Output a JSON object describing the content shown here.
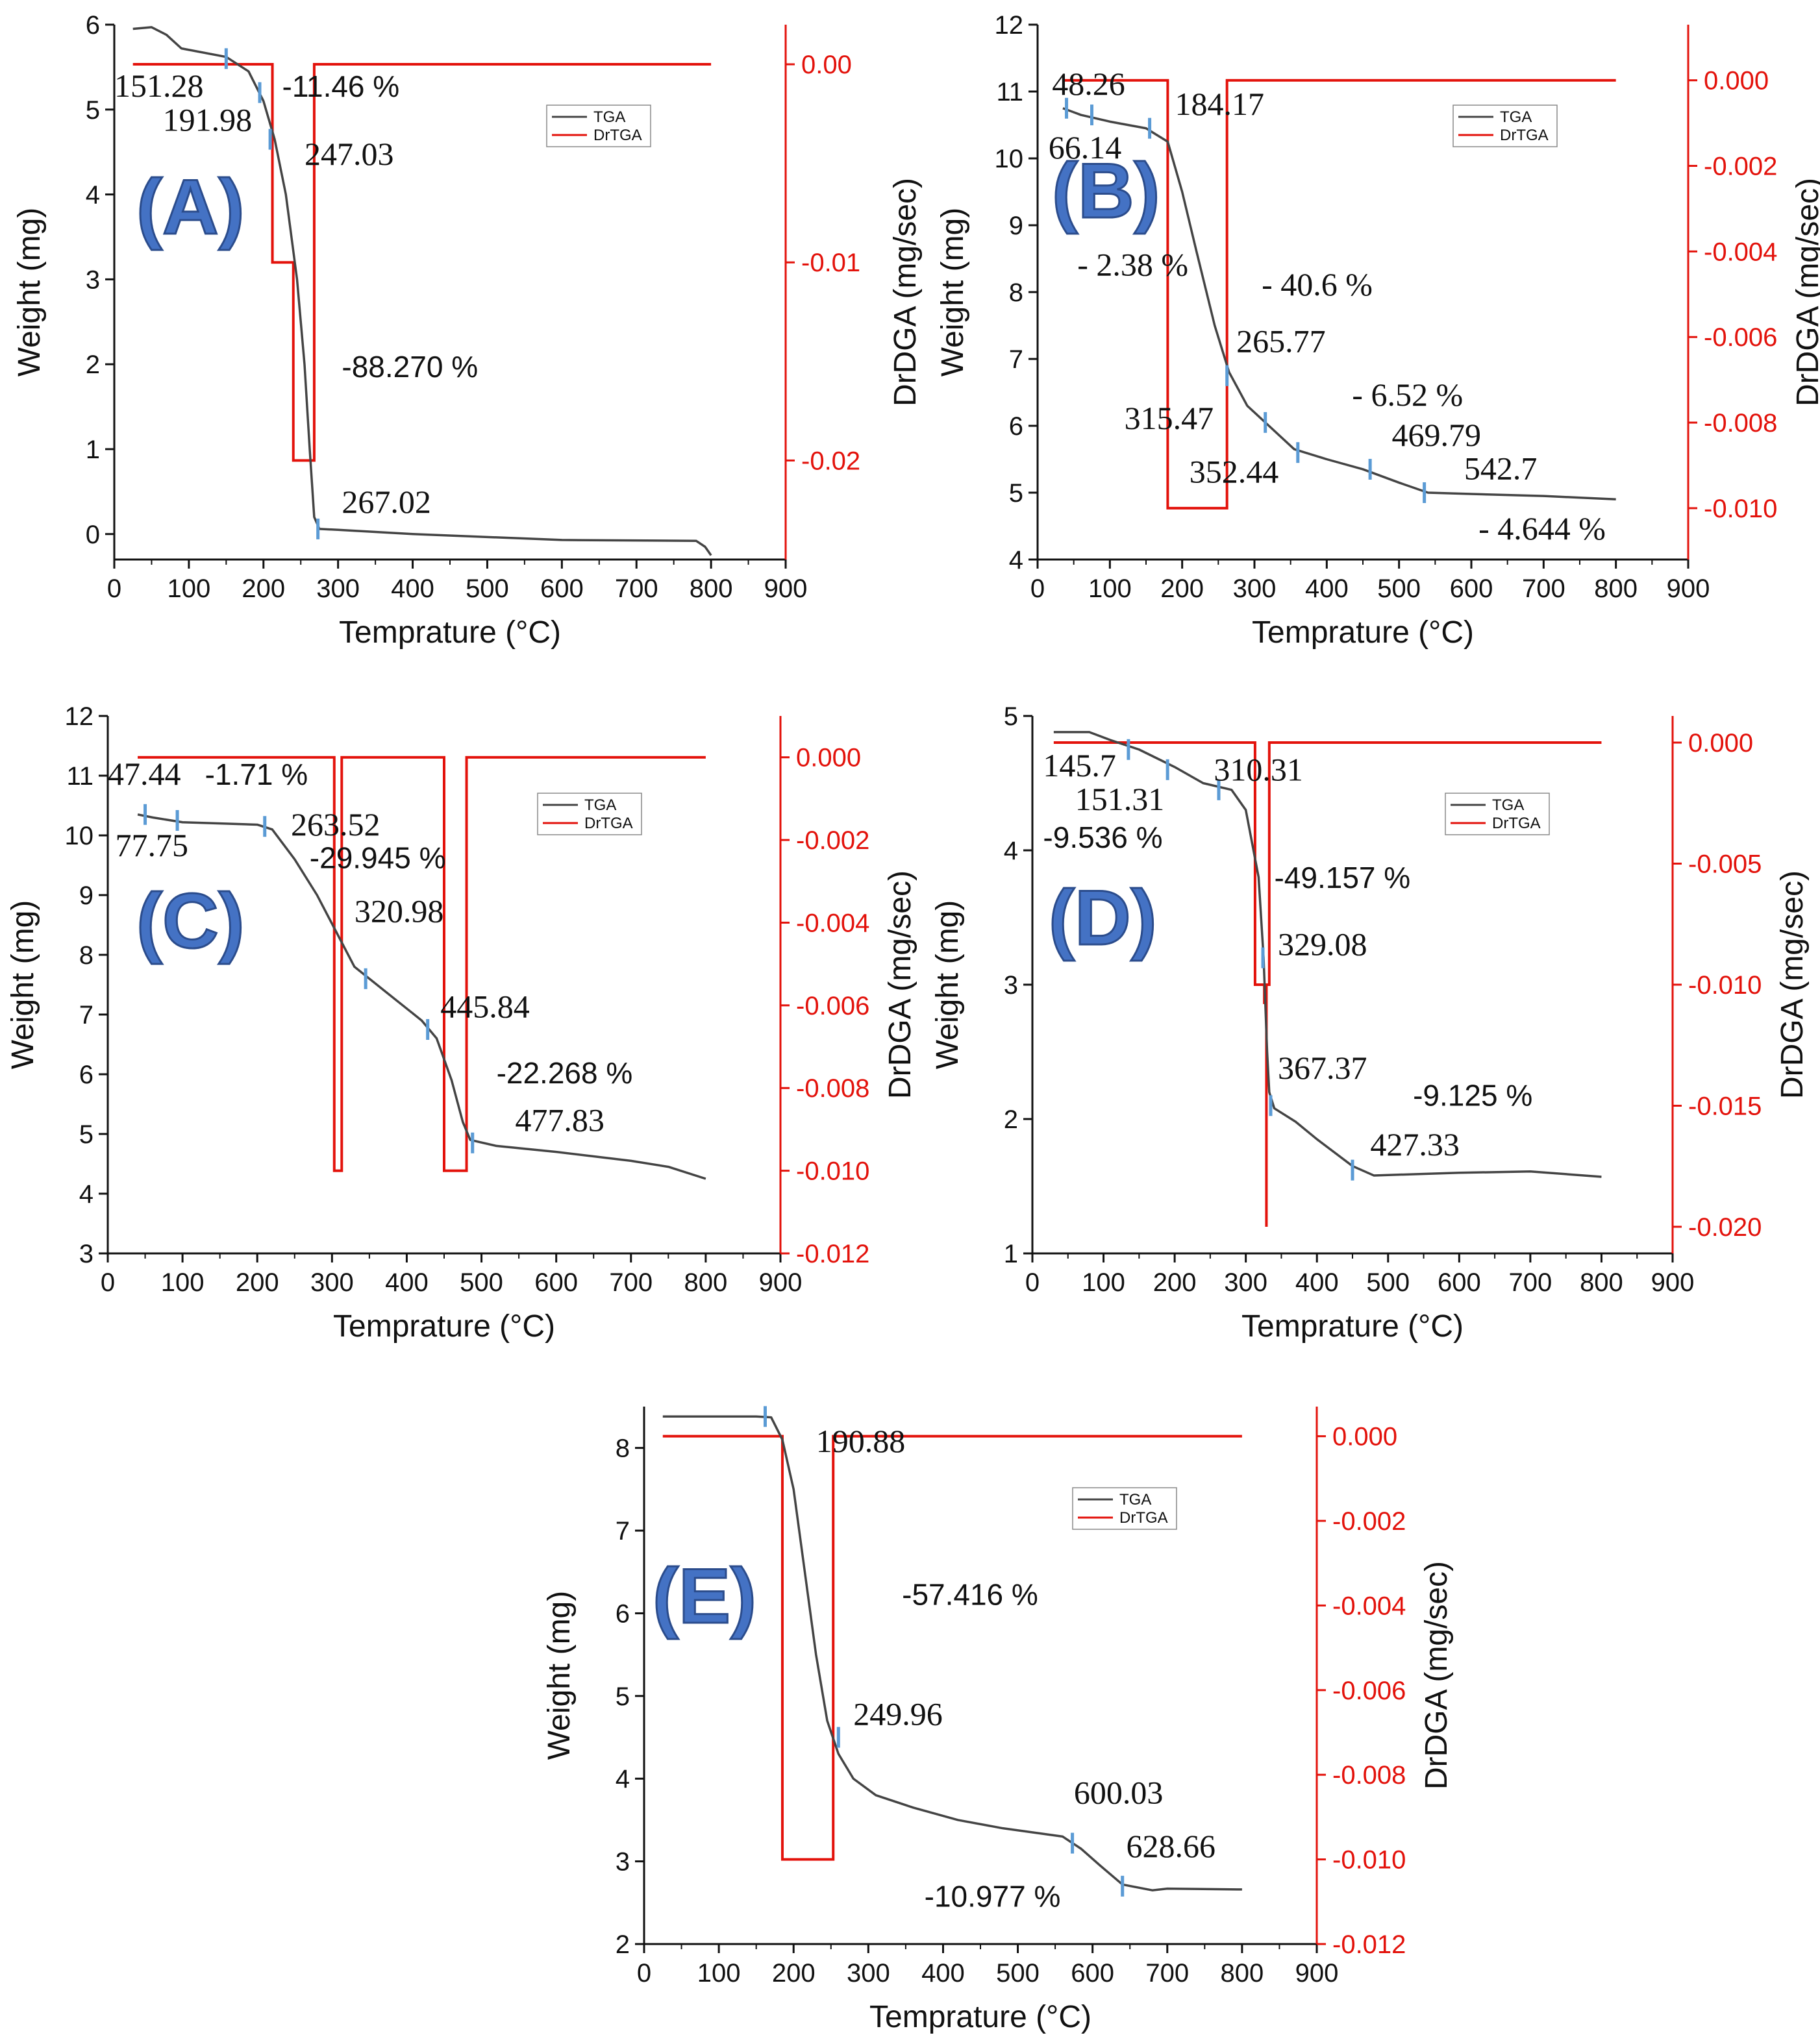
{
  "figure": {
    "colors": {
      "tga": "#444444",
      "drtga": "#e3120b",
      "marker": "#5b9bd5",
      "panel_letter": "#4472c4"
    },
    "legend": {
      "tga": "TGA",
      "drtga": "DrTGA"
    }
  },
  "chart_data": [
    {
      "id": "A",
      "type": "line",
      "panel_label": "(A)",
      "xlabel": "Temprature (°C)",
      "ylabel": "Weight (mg)",
      "y2label": "DrDGA (mg/sec)",
      "xlim": [
        0,
        900
      ],
      "ylim": [
        -0.3,
        6
      ],
      "y2lim": [
        -0.025,
        0.002
      ],
      "xticks": [
        "0",
        "100",
        "200",
        "300",
        "400",
        "500",
        "600",
        "700",
        "800",
        "900"
      ],
      "yticks": [
        "0",
        "1",
        "2",
        "3",
        "4",
        "5",
        "6"
      ],
      "y2ticks": [
        "0.00",
        "-0.01",
        "-0.02"
      ],
      "tga": [
        [
          25,
          5.95
        ],
        [
          50,
          5.97
        ],
        [
          70,
          5.88
        ],
        [
          90,
          5.72
        ],
        [
          150,
          5.62
        ],
        [
          180,
          5.45
        ],
        [
          200,
          5.1
        ],
        [
          215,
          4.65
        ],
        [
          230,
          4.0
        ],
        [
          245,
          3.0
        ],
        [
          255,
          2.0
        ],
        [
          262,
          1.0
        ],
        [
          268,
          0.2
        ],
        [
          275,
          0.06
        ],
        [
          300,
          0.05
        ],
        [
          400,
          0.0
        ],
        [
          600,
          -0.07
        ],
        [
          780,
          -0.08
        ],
        [
          792,
          -0.15
        ],
        [
          800,
          -0.25
        ]
      ],
      "drtga": [
        [
          25,
          0
        ],
        [
          212,
          0
        ],
        [
          212,
          -0.01
        ],
        [
          240,
          -0.01
        ],
        [
          240,
          -0.02
        ],
        [
          268,
          -0.02
        ],
        [
          268,
          0
        ],
        [
          800,
          0
        ]
      ],
      "markers": [
        [
          150,
          5.6
        ],
        [
          195,
          5.2
        ],
        [
          209,
          4.65
        ],
        [
          273,
          0.06
        ]
      ],
      "annotations": [
        {
          "text": "151.28",
          "x": 0,
          "y": 5.15,
          "style": "serif"
        },
        {
          "text": "-11.46 %",
          "x": 225,
          "y": 5.15,
          "style": "sans"
        },
        {
          "text": "191.98",
          "x": 65,
          "y": 4.75,
          "style": "serif"
        },
        {
          "text": "247.03",
          "x": 255,
          "y": 4.35,
          "style": "serif"
        },
        {
          "text": "-88.270 %",
          "x": 305,
          "y": 1.85,
          "style": "sans"
        },
        {
          "text": "267.02",
          "x": 305,
          "y": 0.25,
          "style": "serif"
        }
      ]
    },
    {
      "id": "B",
      "type": "line",
      "panel_label": "(B)",
      "xlabel": "Temprature (°C)",
      "ylabel": "Weight (mg)",
      "y2label": "DrDGA (mg/sec)",
      "xlim": [
        0,
        900
      ],
      "ylim": [
        4,
        12
      ],
      "y2lim": [
        -0.0112,
        0.0013
      ],
      "xticks": [
        "0",
        "100",
        "200",
        "300",
        "400",
        "500",
        "600",
        "700",
        "800",
        "900"
      ],
      "yticks": [
        "4",
        "5",
        "6",
        "7",
        "8",
        "9",
        "10",
        "11",
        "12"
      ],
      "y2ticks": [
        "0.000",
        "-0.002",
        "-0.004",
        "-0.006",
        "-0.008",
        "-0.010"
      ],
      "tga": [
        [
          35,
          10.75
        ],
        [
          60,
          10.65
        ],
        [
          100,
          10.55
        ],
        [
          150,
          10.45
        ],
        [
          180,
          10.25
        ],
        [
          200,
          9.5
        ],
        [
          220,
          8.6
        ],
        [
          245,
          7.5
        ],
        [
          265,
          6.8
        ],
        [
          290,
          6.3
        ],
        [
          320,
          6.0
        ],
        [
          355,
          5.65
        ],
        [
          400,
          5.5
        ],
        [
          450,
          5.35
        ],
        [
          500,
          5.15
        ],
        [
          540,
          5.0
        ],
        [
          600,
          4.98
        ],
        [
          700,
          4.95
        ],
        [
          800,
          4.9
        ]
      ],
      "drtga": [
        [
          35,
          0
        ],
        [
          180,
          0
        ],
        [
          180,
          -0.01
        ],
        [
          262,
          -0.01
        ],
        [
          262,
          0
        ],
        [
          800,
          0
        ]
      ],
      "markers": [
        [
          40,
          10.75
        ],
        [
          75,
          10.65
        ],
        [
          155,
          10.45
        ],
        [
          262,
          6.75
        ],
        [
          315,
          6.05
        ],
        [
          360,
          5.6
        ],
        [
          460,
          5.35
        ],
        [
          535,
          5.0
        ]
      ],
      "annotations": [
        {
          "text": "48.26",
          "x": 20,
          "y": 10.95,
          "style": "serif"
        },
        {
          "text": "184.17",
          "x": 190,
          "y": 10.65,
          "style": "serif"
        },
        {
          "text": "66.14",
          "x": 15,
          "y": 10.0,
          "style": "serif"
        },
        {
          "text": "- 2.38 %",
          "x": 55,
          "y": 8.25,
          "style": "serif"
        },
        {
          "text": "- 40.6 %",
          "x": 310,
          "y": 7.95,
          "style": "serif"
        },
        {
          "text": "265.77",
          "x": 275,
          "y": 7.1,
          "style": "serif"
        },
        {
          "text": "- 6.52 %",
          "x": 435,
          "y": 6.3,
          "style": "serif"
        },
        {
          "text": "315.47",
          "x": 120,
          "y": 5.95,
          "style": "serif"
        },
        {
          "text": "469.79",
          "x": 490,
          "y": 5.7,
          "style": "serif"
        },
        {
          "text": "352.44",
          "x": 210,
          "y": 5.15,
          "style": "serif"
        },
        {
          "text": "542.7",
          "x": 590,
          "y": 5.2,
          "style": "serif"
        },
        {
          "text": "- 4.644 %",
          "x": 610,
          "y": 4.3,
          "style": "serif"
        }
      ]
    },
    {
      "id": "C",
      "type": "line",
      "panel_label": "(C)",
      "xlabel": "Temprature (°C)",
      "ylabel": "Weight (mg)",
      "y2label": "DrDGA (mg/sec)",
      "xlim": [
        0,
        900
      ],
      "ylim": [
        3,
        12
      ],
      "y2lim": [
        -0.012,
        0.001
      ],
      "xticks": [
        "0",
        "100",
        "200",
        "300",
        "400",
        "500",
        "600",
        "700",
        "800",
        "900"
      ],
      "yticks": [
        "3",
        "4",
        "5",
        "6",
        "7",
        "8",
        "9",
        "10",
        "11",
        "12"
      ],
      "y2ticks": [
        "0.000",
        "-0.002",
        "-0.004",
        "-0.006",
        "-0.008",
        "-0.010",
        "-0.012"
      ],
      "tga": [
        [
          40,
          10.35
        ],
        [
          60,
          10.3
        ],
        [
          100,
          10.22
        ],
        [
          200,
          10.18
        ],
        [
          220,
          10.1
        ],
        [
          250,
          9.6
        ],
        [
          280,
          9.0
        ],
        [
          305,
          8.4
        ],
        [
          330,
          7.8
        ],
        [
          370,
          7.4
        ],
        [
          420,
          6.9
        ],
        [
          440,
          6.6
        ],
        [
          460,
          5.9
        ],
        [
          475,
          5.2
        ],
        [
          485,
          4.9
        ],
        [
          520,
          4.8
        ],
        [
          600,
          4.7
        ],
        [
          700,
          4.55
        ],
        [
          750,
          4.45
        ],
        [
          800,
          4.25
        ]
      ],
      "drtga": [
        [
          40,
          0
        ],
        [
          303,
          0
        ],
        [
          303,
          -0.01
        ],
        [
          313,
          -0.01
        ],
        [
          313,
          0
        ],
        [
          450,
          0
        ],
        [
          450,
          -0.01
        ],
        [
          480,
          -0.01
        ],
        [
          480,
          0
        ],
        [
          800,
          0
        ]
      ],
      "markers": [
        [
          50,
          10.35
        ],
        [
          93,
          10.25
        ],
        [
          210,
          10.15
        ],
        [
          345,
          7.6
        ],
        [
          428,
          6.75
        ],
        [
          488,
          4.85
        ]
      ],
      "annotations": [
        {
          "text": "47.44",
          "x": 0,
          "y": 10.85,
          "style": "serif"
        },
        {
          "text": "-1.71 %",
          "x": 130,
          "y": 10.85,
          "style": "sans"
        },
        {
          "text": "263.52",
          "x": 245,
          "y": 10.0,
          "style": "serif"
        },
        {
          "text": "77.75",
          "x": 10,
          "y": 9.65,
          "style": "serif"
        },
        {
          "text": "-29.945 %",
          "x": 270,
          "y": 9.45,
          "style": "sans"
        },
        {
          "text": "320.98",
          "x": 330,
          "y": 8.55,
          "style": "serif"
        },
        {
          "text": "445.84",
          "x": 445,
          "y": 6.95,
          "style": "serif"
        },
        {
          "text": "-22.268 %",
          "x": 520,
          "y": 5.85,
          "style": "sans"
        },
        {
          "text": "477.83",
          "x": 545,
          "y": 5.05,
          "style": "serif"
        }
      ]
    },
    {
      "id": "D",
      "type": "line",
      "panel_label": "(D)",
      "xlabel": "Temprature (°C)",
      "ylabel": "Weight (mg)",
      "y2label": "DrDGA (mg/sec)",
      "xlim": [
        0,
        900
      ],
      "ylim": [
        1,
        5
      ],
      "y2lim": [
        -0.0211,
        0.0011
      ],
      "xticks": [
        "0",
        "100",
        "200",
        "300",
        "400",
        "500",
        "600",
        "700",
        "800",
        "900"
      ],
      "yticks": [
        "1",
        "2",
        "3",
        "4",
        "5"
      ],
      "y2ticks": [
        "0.000",
        "-0.005",
        "-0.010",
        "-0.015",
        "-0.020"
      ],
      "tga": [
        [
          30,
          4.88
        ],
        [
          80,
          4.88
        ],
        [
          110,
          4.82
        ],
        [
          150,
          4.75
        ],
        [
          200,
          4.62
        ],
        [
          240,
          4.5
        ],
        [
          280,
          4.45
        ],
        [
          300,
          4.3
        ],
        [
          318,
          3.8
        ],
        [
          325,
          3.2
        ],
        [
          330,
          2.5
        ],
        [
          333,
          2.2
        ],
        [
          340,
          2.08
        ],
        [
          370,
          1.98
        ],
        [
          400,
          1.85
        ],
        [
          450,
          1.65
        ],
        [
          480,
          1.58
        ],
        [
          600,
          1.6
        ],
        [
          700,
          1.61
        ],
        [
          800,
          1.57
        ]
      ],
      "drtga": [
        [
          30,
          0
        ],
        [
          313,
          0
        ],
        [
          313,
          -0.01
        ],
        [
          333,
          -0.01
        ],
        [
          333,
          0
        ],
        [
          800,
          0
        ]
      ],
      "spikes": [
        [
          326,
          -0.0108
        ],
        [
          329,
          -0.02
        ]
      ],
      "markers": [
        [
          135,
          4.75
        ],
        [
          190,
          4.6
        ],
        [
          262,
          4.45
        ],
        [
          324,
          3.2
        ],
        [
          335,
          2.1
        ],
        [
          450,
          1.62
        ]
      ],
      "annotations": [
        {
          "text": "145.7",
          "x": 15,
          "y": 4.55,
          "style": "serif"
        },
        {
          "text": "310.31",
          "x": 255,
          "y": 4.52,
          "style": "serif"
        },
        {
          "text": "151.31",
          "x": 60,
          "y": 4.3,
          "style": "serif"
        },
        {
          "text": "-9.536 %",
          "x": 15,
          "y": 4.02,
          "style": "sans"
        },
        {
          "text": "-49.157 %",
          "x": 340,
          "y": 3.72,
          "style": "sans"
        },
        {
          "text": "329.08",
          "x": 345,
          "y": 3.22,
          "style": "serif"
        },
        {
          "text": "367.37",
          "x": 345,
          "y": 2.3,
          "style": "serif"
        },
        {
          "text": "-9.125 %",
          "x": 535,
          "y": 2.1,
          "style": "sans"
        },
        {
          "text": "427.33",
          "x": 475,
          "y": 1.73,
          "style": "serif"
        }
      ]
    },
    {
      "id": "E",
      "type": "line",
      "panel_label": "(E)",
      "xlabel": "Temprature (°C)",
      "ylabel": "Weight (mg)",
      "y2label": "DrDGA (mg/sec)",
      "xlim": [
        0,
        900
      ],
      "ylim": [
        2,
        8.5
      ],
      "y2lim": [
        -0.012,
        0.0007
      ],
      "xticks": [
        "0",
        "100",
        "200",
        "300",
        "400",
        "500",
        "600",
        "700",
        "800",
        "900"
      ],
      "yticks": [
        "2",
        "3",
        "4",
        "5",
        "6",
        "7",
        "8"
      ],
      "y2ticks": [
        "0.000",
        "-0.002",
        "-0.004",
        "-0.006",
        "-0.008",
        "-0.010",
        "-0.012"
      ],
      "tga": [
        [
          25,
          8.38
        ],
        [
          150,
          8.38
        ],
        [
          170,
          8.37
        ],
        [
          185,
          8.1
        ],
        [
          200,
          7.5
        ],
        [
          215,
          6.5
        ],
        [
          230,
          5.5
        ],
        [
          245,
          4.7
        ],
        [
          260,
          4.3
        ],
        [
          280,
          4.0
        ],
        [
          310,
          3.8
        ],
        [
          360,
          3.65
        ],
        [
          420,
          3.5
        ],
        [
          480,
          3.4
        ],
        [
          560,
          3.3
        ],
        [
          585,
          3.15
        ],
        [
          610,
          2.95
        ],
        [
          640,
          2.72
        ],
        [
          680,
          2.65
        ],
        [
          700,
          2.67
        ],
        [
          800,
          2.66
        ]
      ],
      "drtga": [
        [
          25,
          0
        ],
        [
          185,
          0
        ],
        [
          185,
          -0.01
        ],
        [
          253,
          -0.01
        ],
        [
          253,
          0
        ],
        [
          800,
          0
        ]
      ],
      "markers": [
        [
          162,
          8.38
        ],
        [
          260,
          4.5
        ],
        [
          573,
          3.22
        ],
        [
          640,
          2.7
        ]
      ],
      "annotations": [
        {
          "text": "190.88",
          "x": 230,
          "y": 7.95,
          "style": "serif"
        },
        {
          "text": "-57.416 %",
          "x": 345,
          "y": 6.1,
          "style": "sans"
        },
        {
          "text": "249.96",
          "x": 280,
          "y": 4.65,
          "style": "serif"
        },
        {
          "text": "600.03",
          "x": 575,
          "y": 3.7,
          "style": "serif"
        },
        {
          "text": "628.66",
          "x": 645,
          "y": 3.05,
          "style": "serif"
        },
        {
          "text": "-10.977 %",
          "x": 375,
          "y": 2.45,
          "style": "sans"
        }
      ]
    }
  ]
}
